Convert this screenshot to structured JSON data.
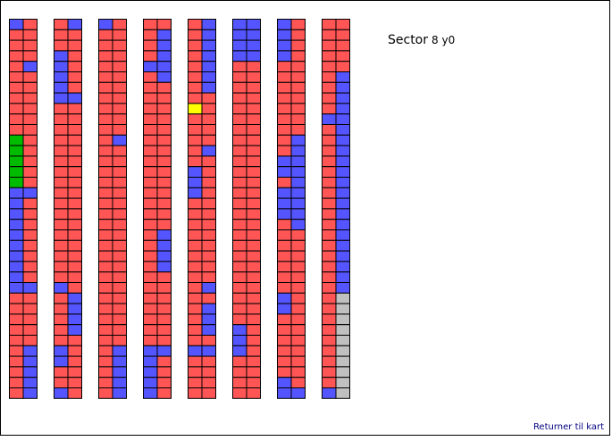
{
  "header": {
    "title": "Sector",
    "sector": "8 y0"
  },
  "footer": {
    "link": "Returner til kart"
  }
}
